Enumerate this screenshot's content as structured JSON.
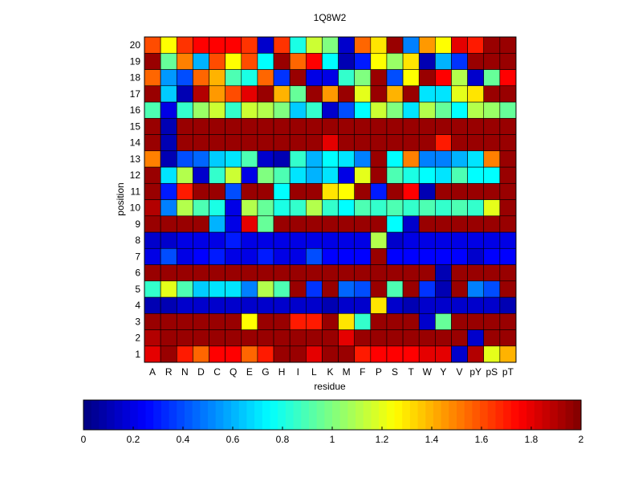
{
  "chart_data": {
    "type": "heatmap",
    "title": "1Q8W2",
    "xlabel": "residue",
    "ylabel": "position",
    "x": [
      "A",
      "R",
      "N",
      "D",
      "C",
      "Q",
      "E",
      "G",
      "H",
      "I",
      "L",
      "K",
      "M",
      "F",
      "P",
      "S",
      "T",
      "W",
      "Y",
      "V",
      "pY",
      "pS",
      "pT"
    ],
    "y": [
      1,
      2,
      3,
      4,
      5,
      6,
      7,
      8,
      9,
      10,
      11,
      12,
      13,
      14,
      15,
      16,
      17,
      18,
      19,
      20
    ],
    "colorscale": "jet",
    "clim": [
      0,
      2
    ],
    "colorbar_ticks": [
      "0",
      "0.2",
      "0.4",
      "0.6",
      "0.8",
      "1",
      "1.2",
      "1.4",
      "1.6",
      "1.8",
      "2"
    ],
    "colorbar_position": "bottom",
    "values": [
      [
        1.8,
        1.95,
        1.7,
        1.55,
        1.75,
        1.75,
        1.55,
        1.7,
        1.95,
        1.95,
        1.8,
        1.95,
        1.95,
        1.7,
        1.75,
        1.75,
        1.75,
        1.8,
        1.8,
        0.15,
        1.9,
        1.2,
        1.4
      ],
      [
        1.9,
        1.95,
        1.95,
        1.95,
        1.95,
        1.95,
        1.95,
        1.95,
        1.95,
        1.95,
        1.95,
        1.95,
        1.8,
        1.95,
        1.95,
        1.95,
        1.95,
        1.95,
        1.95,
        1.95,
        0.15,
        1.95,
        1.95
      ],
      [
        1.95,
        1.95,
        1.95,
        1.95,
        1.95,
        1.95,
        1.25,
        1.95,
        1.95,
        1.7,
        1.7,
        1.95,
        1.3,
        0.85,
        1.95,
        1.95,
        1.95,
        0.15,
        0.95,
        1.95,
        1.95,
        1.95,
        1.95
      ],
      [
        0.1,
        0.1,
        0.15,
        0.15,
        0.15,
        0.15,
        0.15,
        0.15,
        0.15,
        0.15,
        0.15,
        0.1,
        0.15,
        0.15,
        1.3,
        0.15,
        0.1,
        0.15,
        0.15,
        0.15,
        0.15,
        0.15,
        0.1
      ],
      [
        0.85,
        1.2,
        0.9,
        0.65,
        0.7,
        0.7,
        0.5,
        1.1,
        0.9,
        1.95,
        0.35,
        1.95,
        0.45,
        0.4,
        1.95,
        0.9,
        1.95,
        0.35,
        0.1,
        1.95,
        0.5,
        0.4,
        1.95
      ],
      [
        1.95,
        1.95,
        1.95,
        1.95,
        1.95,
        1.95,
        1.95,
        1.95,
        1.95,
        1.95,
        1.95,
        1.95,
        1.95,
        1.95,
        1.95,
        1.95,
        1.95,
        1.95,
        0.1,
        1.95,
        1.95,
        1.95,
        1.95
      ],
      [
        0.2,
        0.4,
        0.2,
        0.25,
        0.3,
        0.2,
        0.2,
        0.3,
        0.2,
        0.2,
        0.4,
        0.25,
        0.25,
        0.25,
        1.95,
        0.25,
        0.25,
        0.25,
        0.25,
        0.25,
        0.15,
        0.25,
        0.25
      ],
      [
        0.15,
        0.15,
        0.2,
        0.2,
        0.2,
        0.3,
        0.2,
        0.2,
        0.2,
        0.2,
        0.2,
        0.2,
        0.2,
        0.2,
        1.1,
        0.15,
        0.2,
        0.2,
        0.2,
        0.2,
        0.2,
        0.2,
        0.2
      ],
      [
        1.95,
        1.95,
        1.95,
        1.95,
        0.6,
        0.2,
        1.8,
        0.95,
        1.95,
        1.95,
        1.95,
        1.95,
        1.95,
        1.95,
        1.95,
        0.75,
        0.15,
        1.95,
        1.95,
        1.95,
        1.95,
        1.95,
        1.95
      ],
      [
        1.9,
        0.5,
        1.1,
        0.9,
        0.8,
        0.2,
        1.1,
        0.95,
        0.8,
        0.85,
        1.1,
        0.85,
        0.75,
        0.9,
        0.85,
        0.9,
        0.85,
        0.9,
        0.85,
        0.9,
        0.85,
        1.2,
        1.95
      ],
      [
        1.95,
        0.3,
        1.7,
        1.95,
        1.95,
        0.4,
        1.95,
        1.95,
        0.75,
        1.95,
        1.95,
        1.3,
        1.25,
        1.95,
        0.3,
        1.95,
        1.75,
        0.1,
        1.95,
        1.95,
        1.95,
        1.95,
        1.95
      ],
      [
        1.95,
        0.7,
        1.1,
        0.15,
        0.85,
        1.15,
        0.2,
        1.0,
        0.9,
        0.7,
        0.6,
        0.7,
        0.2,
        1.2,
        1.95,
        0.9,
        0.8,
        0.75,
        0.7,
        0.9,
        0.75,
        0.75,
        1.95
      ],
      [
        1.5,
        0.1,
        0.4,
        0.45,
        0.65,
        0.7,
        0.9,
        0.15,
        0.1,
        0.85,
        0.6,
        0.75,
        0.7,
        0.5,
        1.95,
        0.75,
        1.5,
        0.5,
        0.5,
        0.6,
        0.7,
        1.5,
        1.95
      ],
      [
        1.95,
        0.1,
        1.95,
        1.95,
        1.95,
        1.95,
        1.95,
        1.95,
        1.95,
        1.95,
        1.95,
        1.8,
        1.95,
        1.95,
        1.95,
        1.95,
        1.95,
        1.95,
        1.7,
        1.95,
        1.95,
        1.95,
        1.95
      ],
      [
        1.95,
        0.1,
        1.95,
        1.95,
        1.95,
        1.95,
        1.95,
        1.95,
        1.95,
        1.95,
        1.95,
        1.95,
        1.95,
        1.95,
        1.95,
        1.95,
        1.95,
        1.95,
        1.95,
        1.95,
        1.95,
        1.95,
        1.95
      ],
      [
        0.9,
        0.2,
        0.85,
        1.05,
        1.15,
        0.85,
        1.15,
        1.1,
        1.0,
        0.65,
        0.85,
        0.15,
        0.4,
        0.75,
        1.15,
        1.0,
        0.7,
        1.1,
        0.95,
        0.75,
        1.1,
        1.05,
        0.95
      ],
      [
        1.95,
        0.65,
        0.1,
        1.9,
        1.45,
        1.6,
        1.8,
        1.95,
        1.4,
        0.95,
        1.95,
        1.45,
        1.95,
        1.2,
        1.95,
        1.4,
        1.95,
        0.7,
        0.7,
        1.2,
        1.3,
        1.95,
        1.95
      ],
      [
        1.55,
        0.55,
        0.4,
        1.55,
        1.4,
        0.9,
        0.8,
        1.55,
        0.35,
        1.95,
        0.2,
        0.2,
        0.85,
        1.0,
        1.95,
        0.4,
        1.25,
        1.95,
        1.75,
        1.1,
        0.15,
        0.95,
        1.75
      ],
      [
        1.95,
        0.95,
        1.5,
        0.6,
        1.6,
        1.25,
        1.6,
        0.75,
        1.95,
        1.55,
        1.75,
        0.75,
        0.1,
        0.3,
        1.25,
        1.05,
        1.3,
        0.1,
        0.6,
        0.35,
        1.95,
        1.95,
        1.95
      ],
      [
        1.6,
        1.25,
        1.65,
        1.75,
        1.75,
        1.75,
        1.65,
        0.15,
        1.65,
        0.8,
        1.15,
        1.0,
        0.15,
        1.55,
        1.3,
        1.95,
        0.5,
        1.45,
        1.25,
        1.8,
        1.7,
        1.95,
        1.95
      ]
    ]
  }
}
